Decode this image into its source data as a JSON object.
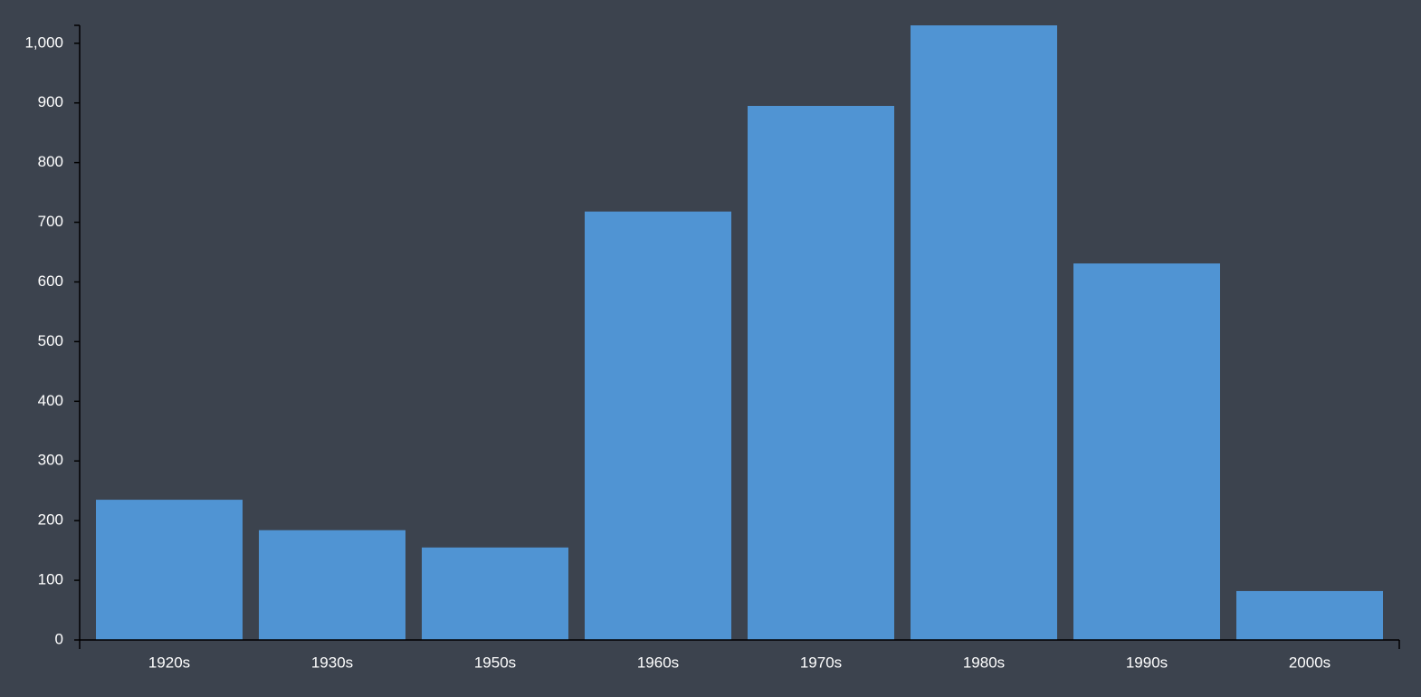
{
  "chart_data": {
    "type": "bar",
    "categories": [
      "1920s",
      "1930s",
      "1950s",
      "1960s",
      "1970s",
      "1980s",
      "1990s",
      "2000s"
    ],
    "values": [
      235,
      184,
      155,
      718,
      895,
      1030,
      631,
      82
    ],
    "color": "#5094d3",
    "ylim": [
      0,
      1030
    ],
    "yticks": [
      0,
      100,
      200,
      300,
      400,
      500,
      600,
      700,
      800,
      900,
      {
        "value": 1000,
        "label": "1,000"
      }
    ],
    "grid": false
  }
}
